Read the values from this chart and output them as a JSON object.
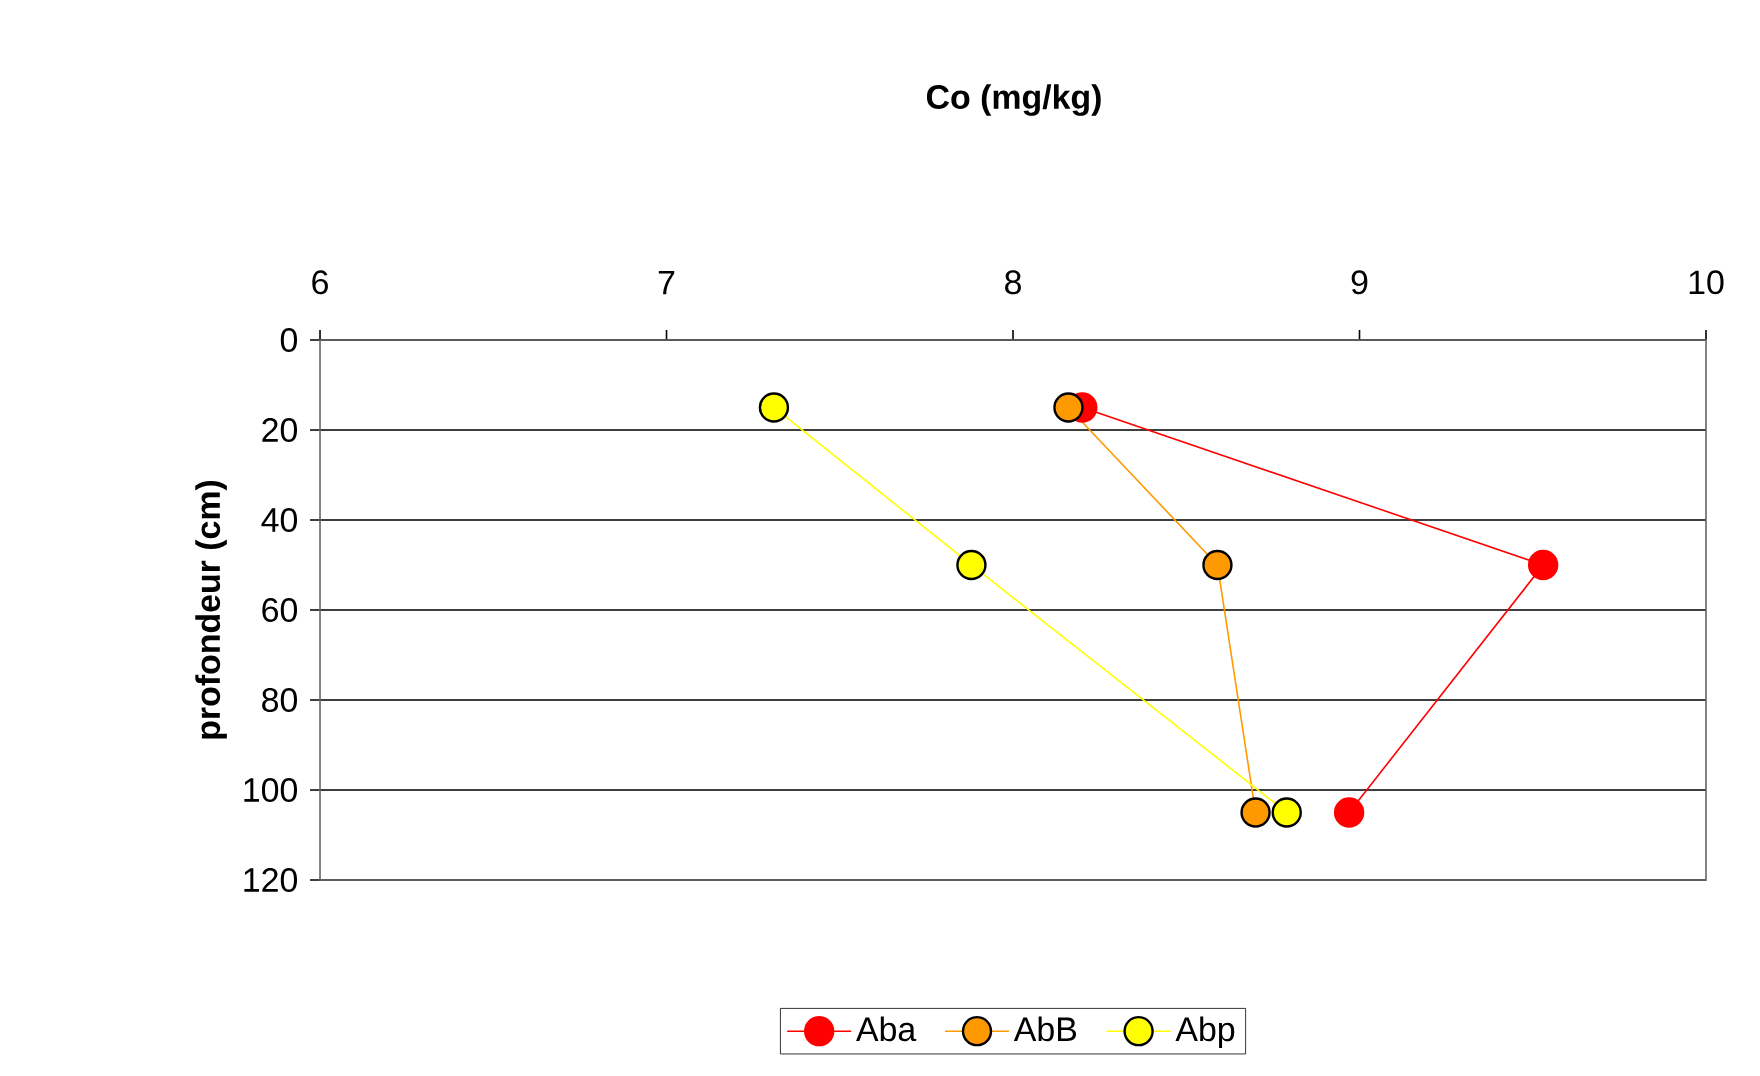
{
  "chart_data": {
    "type": "line",
    "title": "Co (mg/kg)",
    "ylabel": "profondeur (cm)",
    "series": [
      {
        "name": "Aba",
        "color": "#ff0000",
        "x": [
          8.2,
          9.53,
          8.97
        ],
        "values": [
          15,
          50,
          105
        ]
      },
      {
        "name": "AbB",
        "color": "#ff9900",
        "x": [
          8.16,
          8.59,
          8.7
        ],
        "values": [
          15,
          50,
          105
        ]
      },
      {
        "name": "Abp",
        "color": "#ffff00",
        "x": [
          7.31,
          7.88,
          8.79
        ],
        "values": [
          15,
          50,
          105
        ]
      }
    ],
    "xlim": [
      6,
      10
    ],
    "xticks": [
      6,
      7,
      8,
      9,
      10
    ],
    "ylim": [
      120,
      0
    ],
    "yticks": [
      0,
      20,
      40,
      60,
      80,
      100,
      120
    ],
    "grid": "y",
    "legend": "bottom",
    "marker": "circle",
    "line_style": "solid"
  }
}
